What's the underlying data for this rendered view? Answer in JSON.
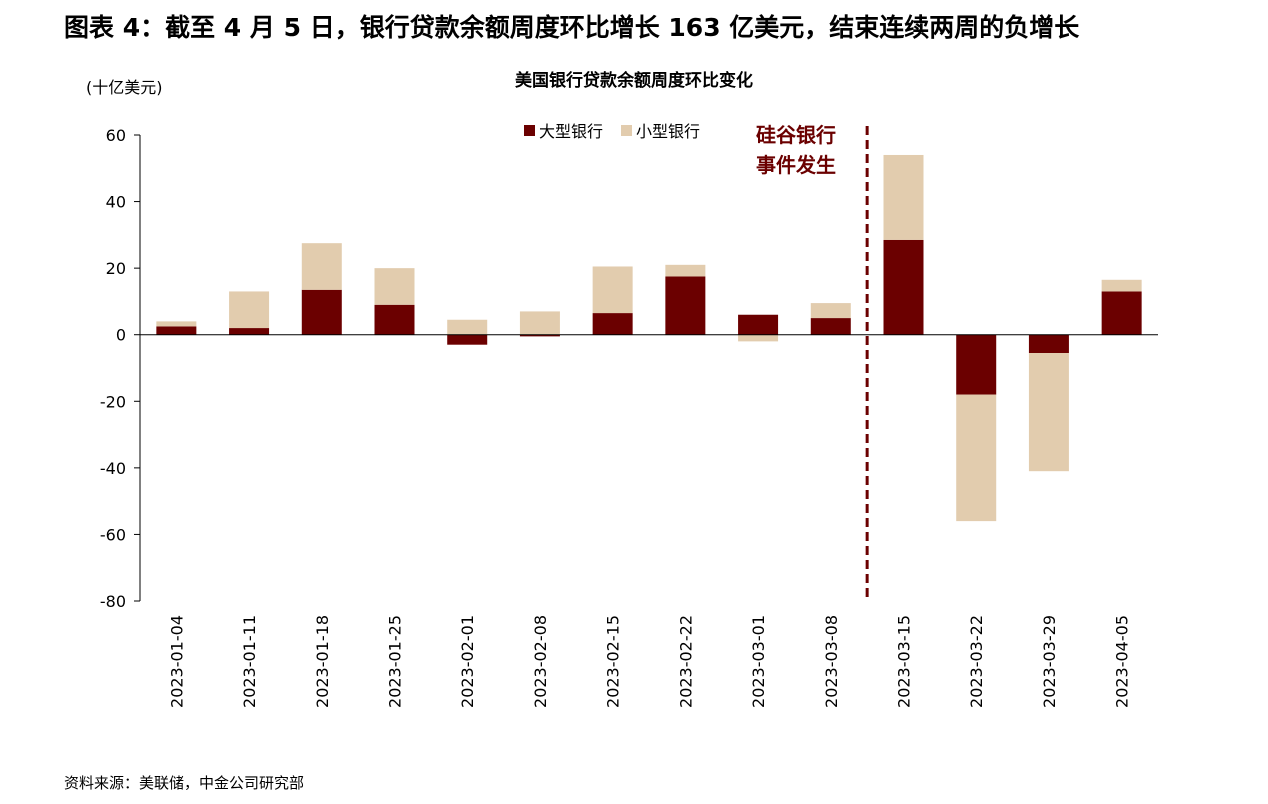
{
  "figure_title": "图表 4：截至 4 月 5 日，银行贷款余额周度环比增长 163 亿美元，结束连续两周的负增长",
  "source_text": "资料来源：美联储，中金公司研究部",
  "colors": {
    "large": "#6b0000",
    "small": "#e2ccae",
    "axis": "#000000"
  },
  "chart_data": {
    "type": "bar",
    "stacked": true,
    "title": "美国银行贷款余额周度环比变化",
    "ylabel": "(十亿美元)",
    "ylim": [
      -80,
      60
    ],
    "yticks": [
      60,
      40,
      20,
      0,
      -20,
      -40,
      -60,
      -80
    ],
    "grid": false,
    "legend_position": "top-center",
    "categories": [
      "2023-01-04",
      "2023-01-11",
      "2023-01-18",
      "2023-01-25",
      "2023-02-01",
      "2023-02-08",
      "2023-02-15",
      "2023-02-22",
      "2023-03-01",
      "2023-03-08",
      "2023-03-15",
      "2023-03-22",
      "2023-03-29",
      "2023-04-05"
    ],
    "series": [
      {
        "name": "大型银行",
        "values": [
          2.5,
          2,
          13.5,
          9,
          -3,
          -0.5,
          6.5,
          17.5,
          6,
          5,
          28.5,
          -18,
          -5.5,
          13
        ]
      },
      {
        "name": "小型银行",
        "values": [
          1.5,
          11,
          14,
          11,
          4.5,
          7,
          14,
          3.5,
          -2,
          4.5,
          25.5,
          -38,
          -35.5,
          3.5
        ]
      }
    ],
    "event_marker": {
      "after_category": "2023-03-08",
      "label_lines": [
        "硅谷银行",
        "事件发生"
      ]
    }
  }
}
